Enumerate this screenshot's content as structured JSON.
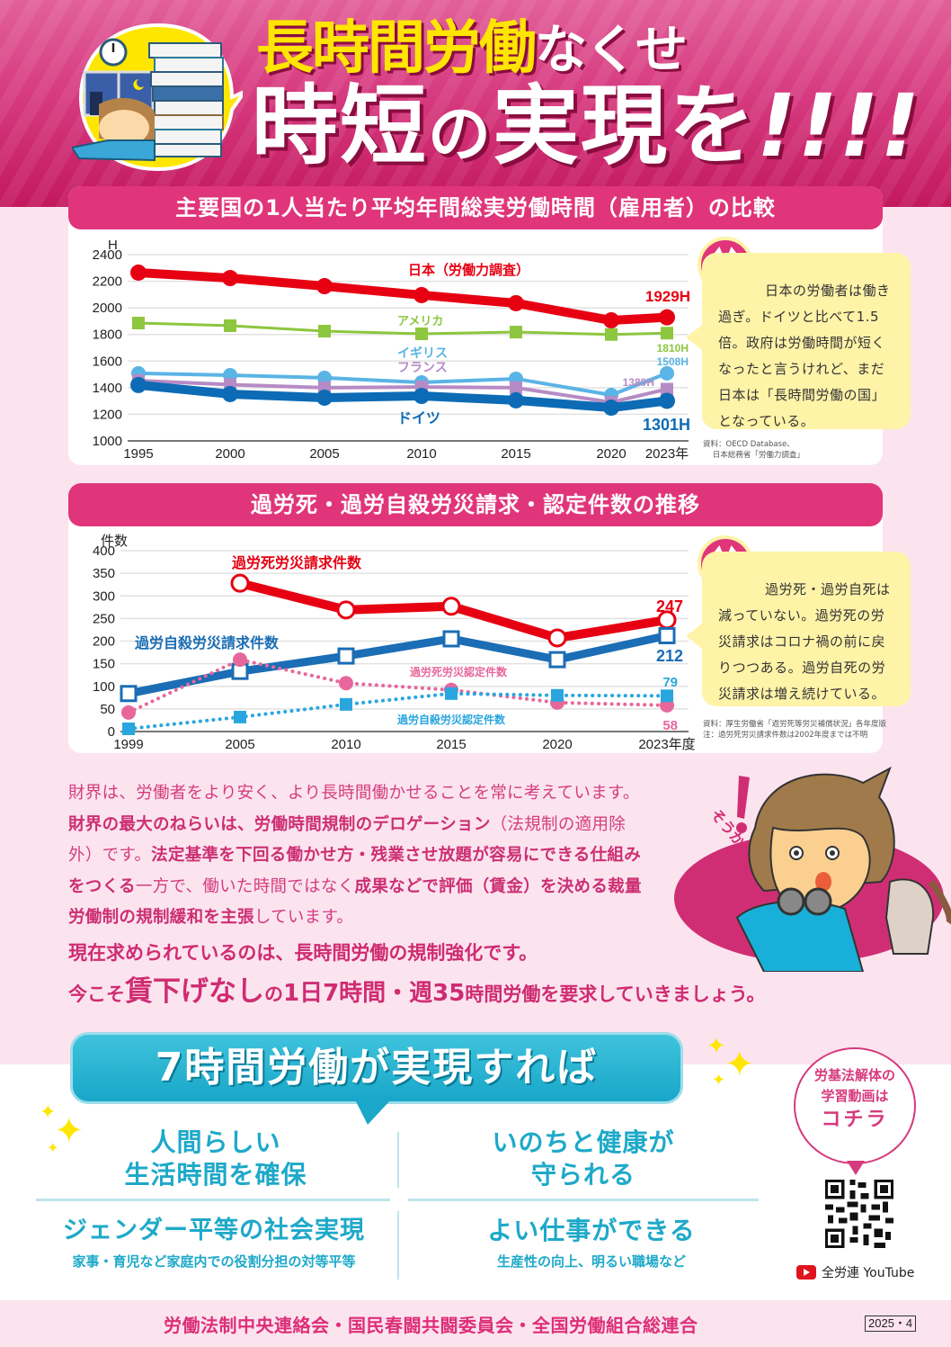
{
  "header": {
    "title_line1_highlight": "長時間労働",
    "title_line1_rest": "なくせ",
    "title_line2_a": "時短",
    "title_line2_b": "の",
    "title_line2_c": "実現を",
    "title_line2_exclaim": "!!!!"
  },
  "section1": {
    "heading": "主要国の1人当たり平均年間総実労働時間（雇用者）の比較",
    "comment": "日本の労働者は働き過ぎ。ドイツと比べて1.5倍。政府は労働時間が短くなったと言うけれど、まだ日本は「長時間労働の国」となっている。",
    "source_line1": "資料：OECD Database、",
    "source_line2": "日本総務省「労働力調査」"
  },
  "section2": {
    "heading": "過労死・過労自殺労災請求・認定件数の推移",
    "comment": "過労死・過労自死は減っていない。過労死の労災請求はコロナ禍の前に戻りつつある。過労自死の労災請求は増え続けている。",
    "source_line1": "資料：厚生労働省「過労死等労災補償状況」各年度版",
    "source_line2": "注：過労死労災請求件数は2002年度までは不明"
  },
  "chart_data": [
    {
      "type": "line",
      "title": "主要国の1人当たり平均年間総実労働時間（雇用者）の比較",
      "xlabel": "年",
      "ylabel": "H",
      "x": [
        "1995",
        "2000",
        "2005",
        "2010",
        "2015",
        "2020",
        "2023年"
      ],
      "ylim": [
        1000,
        2400
      ],
      "yticks": [
        1000,
        1200,
        1400,
        1600,
        1800,
        2000,
        2200,
        2400
      ],
      "grid": true,
      "series": [
        {
          "name": "日本（労働力調査）",
          "color": "#e60012",
          "values": [
            2265,
            2224,
            2163,
            2096,
            2035,
            1906,
            1929
          ],
          "end_label": "1929H"
        },
        {
          "name": "アメリカ",
          "color": "#8dc63f",
          "values": [
            1886,
            1866,
            1825,
            1805,
            1818,
            1800,
            1810
          ],
          "end_label": "1810H"
        },
        {
          "name": "イギリス",
          "color": "#5ab4e5",
          "values": [
            1508,
            1494,
            1474,
            1440,
            1467,
            1345,
            1508
          ],
          "end_label": "1508H"
        },
        {
          "name": "フランス",
          "color": "#b68bc5",
          "values": [
            1453,
            1423,
            1400,
            1405,
            1400,
            1290,
            1389
          ],
          "end_label": "1389H"
        },
        {
          "name": "ドイツ",
          "color": "#0d6bb5",
          "values": [
            1420,
            1352,
            1325,
            1338,
            1305,
            1250,
            1301
          ],
          "end_label": "1301H"
        }
      ]
    },
    {
      "type": "line",
      "title": "過労死・過労自殺労災請求・認定件数の推移",
      "xlabel": "年度",
      "ylabel": "件数",
      "x": [
        "1999",
        "2005",
        "2010",
        "2015",
        "2020",
        "2023年度"
      ],
      "ylim": [
        0,
        400
      ],
      "yticks": [
        0,
        50,
        100,
        150,
        200,
        250,
        300,
        350,
        400
      ],
      "grid": true,
      "series": [
        {
          "name": "過労死労災請求件数",
          "color": "#e60012",
          "values": [
            null,
            328,
            269,
            277,
            207,
            247
          ],
          "end_label": "247"
        },
        {
          "name": "過労自殺労災請求件数",
          "color": "#1b6db5",
          "values": [
            84,
            133,
            167,
            205,
            159,
            212
          ],
          "end_label": "212"
        },
        {
          "name": "過労死労災認定件数",
          "color": "#e7679c",
          "values": [
            42,
            159,
            107,
            92,
            64,
            58
          ],
          "end_label": "58",
          "style": "dotted"
        },
        {
          "name": "過労自殺労災認定件数",
          "color": "#2aa6de",
          "values": [
            6,
            32,
            60,
            84,
            80,
            79
          ],
          "end_label": "79",
          "style": "dotted"
        }
      ]
    }
  ],
  "body": {
    "p1_a": "財界は、労働者をより安く、より長時間働かせることを常に考えています。",
    "p1_b": "財界の最大のねらいは、労働時間規制のデロゲーション",
    "p1_c": "（法規制の適用除外）です。",
    "p1_d": "法定基準を下回る働かせ方・残業させ放題が容易にできる仕組みをつくる",
    "p1_e": "一方で、働いた時間ではなく",
    "p1_f": "成果などで評価（賃金）を決める裁量労働制の規制緩和を主張",
    "p1_g": "しています。",
    "demand1": "現在求められているのは、長時間労働の規制強化です。",
    "demand2_a": "今こそ",
    "demand2_b": "賃下げなし",
    "demand2_c": "の",
    "demand2_d": "1日7時間・週35",
    "demand2_e": "時間労働",
    "demand2_f": "を要求していきましょう。",
    "exclaim": "そうか"
  },
  "benefits": {
    "banner": "7時間労働が実現すれば",
    "items": [
      {
        "title_l1": "人間らしい",
        "title_l2": "生活時間を確保",
        "sub": ""
      },
      {
        "title_l1": "いのちと健康が",
        "title_l2": "守られる",
        "sub": ""
      },
      {
        "title_l1": "ジェンダー平等の社会実現",
        "title_l2": "",
        "sub": "家事・育児など家庭内での役割分担の対等平等"
      },
      {
        "title_l1": "よい仕事ができる",
        "title_l2": "",
        "sub": "生産性の向上、明るい職場など"
      }
    ]
  },
  "video": {
    "bubble_l1": "労基法解体の",
    "bubble_l2": "学習動画は",
    "bubble_l3": "コチラ",
    "youtube_label": "全労連 YouTube"
  },
  "footer": {
    "orgs": "労働法制中央連絡会・国民春闘共闘委員会・全国労働組合総連合",
    "date": "2025・4"
  },
  "colors": {
    "brand_pink": "#e0357a",
    "header_dark": "#c3185e",
    "title_yellow": "#ffe600",
    "accent_cyan": "#1ea9c9",
    "page_bg": "#fce4ef"
  }
}
